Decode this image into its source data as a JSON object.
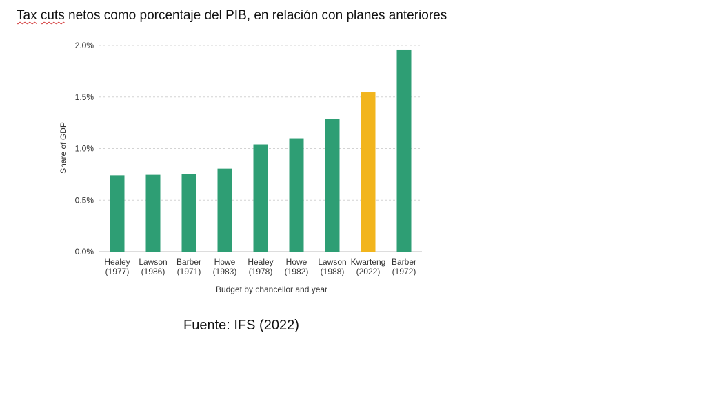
{
  "slide": {
    "title_word1": "Tax",
    "title_word2": "cuts",
    "title_rest": " netos como porcentaje del PIB, en relación con planes anteriores",
    "source": "Fuente: IFS (2022)"
  },
  "chart_data": {
    "type": "bar",
    "categories": [
      [
        "Healey",
        "(1977)"
      ],
      [
        "Lawson",
        "(1986)"
      ],
      [
        "Barber",
        "(1971)"
      ],
      [
        "Howe",
        "(1983)"
      ],
      [
        "Healey",
        "(1978)"
      ],
      [
        "Howe",
        "(1982)"
      ],
      [
        "Lawson",
        "(1988)"
      ],
      [
        "Kwarteng",
        "(2022)"
      ],
      [
        "Barber",
        "(1972)"
      ]
    ],
    "values": [
      0.74,
      0.745,
      0.755,
      0.805,
      1.04,
      1.1,
      1.285,
      1.545,
      1.96
    ],
    "highlight_index": 7,
    "colors": {
      "default": "#2e9e74",
      "highlight": "#f2b51d",
      "grid": "#d3d3d3",
      "axis": "#bbbbbb"
    },
    "title": "",
    "xlabel": "Budget by chancellor and year",
    "ylabel": "Share of GDP",
    "ylim": [
      0,
      2.0
    ],
    "yticks": [
      0,
      0.5,
      1.0,
      1.5,
      2.0
    ],
    "ytick_labels": [
      "0.0%",
      "0.5%",
      "1.0%",
      "1.5%",
      "2.0%"
    ],
    "grid": true,
    "legend": "none"
  }
}
